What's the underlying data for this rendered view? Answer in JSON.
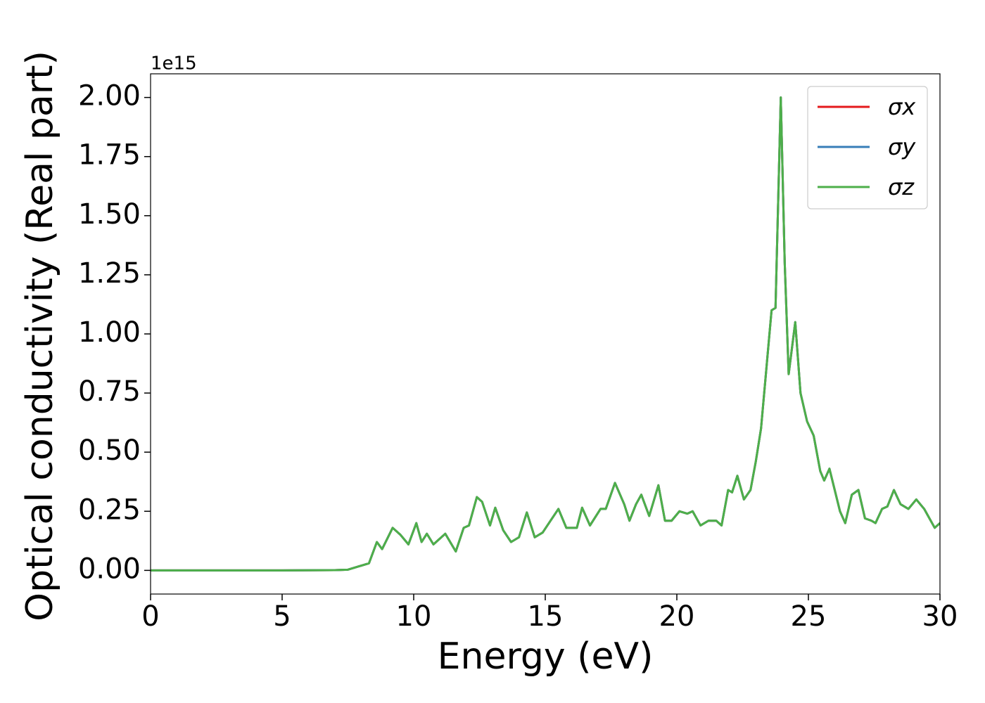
{
  "chart_data": {
    "type": "line",
    "xlabel": "Energy (eV)",
    "ylabel": "Optical conductivity (Real part)",
    "y_offset_label": "1e15",
    "xlim": [
      0,
      30
    ],
    "ylim": [
      -0.1,
      2.1
    ],
    "xticks": [
      0,
      5,
      10,
      15,
      20,
      25,
      30
    ],
    "yticks": [
      {
        "value": 0,
        "label": "0.00"
      },
      {
        "value": 0.25,
        "label": "0.25"
      },
      {
        "value": 0.5,
        "label": "0.50"
      },
      {
        "value": 0.75,
        "label": "0.75"
      },
      {
        "value": 1,
        "label": "1.00"
      },
      {
        "value": 1.25,
        "label": "1.25"
      },
      {
        "value": 1.5,
        "label": "1.50"
      },
      {
        "value": 1.75,
        "label": "1.75"
      },
      {
        "value": 2,
        "label": "2.00"
      }
    ],
    "grid": false,
    "legend": "upper right",
    "x": [
      0,
      5,
      7,
      7.5,
      8,
      8.3,
      8.6,
      8.8,
      9.2,
      9.5,
      9.8,
      10.1,
      10.3,
      10.5,
      10.75,
      11.2,
      11.6,
      11.9,
      12.1,
      12.4,
      12.6,
      12.9,
      13.1,
      13.4,
      13.7,
      14,
      14.3,
      14.6,
      14.9,
      15.2,
      15.5,
      15.8,
      16.2,
      16.4,
      16.7,
      17.1,
      17.3,
      17.65,
      18,
      18.2,
      18.45,
      18.65,
      18.95,
      19.3,
      19.55,
      19.8,
      20.1,
      20.4,
      20.6,
      20.9,
      21.2,
      21.5,
      21.7,
      21.95,
      22.1,
      22.3,
      22.55,
      22.8,
      23,
      23.2,
      23.4,
      23.6,
      23.75,
      23.95,
      24.1,
      24.25,
      24.5,
      24.7,
      24.95,
      25.2,
      25.45,
      25.6,
      25.8,
      26,
      26.2,
      26.4,
      26.65,
      26.9,
      27.15,
      27.4,
      27.55,
      27.8,
      28,
      28.25,
      28.5,
      28.8,
      29.1,
      29.4,
      29.6,
      29.8,
      30
    ],
    "series": [
      {
        "name": "σx",
        "color": "#e41a1c",
        "values": [
          0,
          0,
          0.001,
          0.003,
          0.02,
          0.03,
          0.12,
          0.09,
          0.18,
          0.15,
          0.11,
          0.2,
          0.12,
          0.155,
          0.11,
          0.155,
          0.08,
          0.18,
          0.19,
          0.31,
          0.29,
          0.19,
          0.265,
          0.17,
          0.12,
          0.14,
          0.245,
          0.14,
          0.16,
          0.21,
          0.26,
          0.18,
          0.18,
          0.265,
          0.19,
          0.26,
          0.26,
          0.37,
          0.28,
          0.21,
          0.28,
          0.32,
          0.23,
          0.36,
          0.21,
          0.21,
          0.25,
          0.24,
          0.25,
          0.19,
          0.21,
          0.21,
          0.19,
          0.34,
          0.33,
          0.4,
          0.3,
          0.34,
          0.46,
          0.6,
          0.85,
          1.1,
          1.11,
          2.0,
          1.3,
          0.83,
          1.05,
          0.75,
          0.63,
          0.57,
          0.42,
          0.38,
          0.43,
          0.34,
          0.25,
          0.2,
          0.32,
          0.34,
          0.22,
          0.21,
          0.2,
          0.26,
          0.27,
          0.34,
          0.28,
          0.26,
          0.3,
          0.26,
          0.22,
          0.18,
          0.2
        ]
      },
      {
        "name": "σy",
        "color": "#377eb8",
        "values": [
          0,
          0,
          0.001,
          0.003,
          0.02,
          0.03,
          0.12,
          0.09,
          0.18,
          0.15,
          0.11,
          0.2,
          0.12,
          0.155,
          0.11,
          0.155,
          0.08,
          0.18,
          0.19,
          0.31,
          0.29,
          0.19,
          0.265,
          0.17,
          0.12,
          0.14,
          0.245,
          0.14,
          0.16,
          0.21,
          0.26,
          0.18,
          0.18,
          0.265,
          0.19,
          0.26,
          0.26,
          0.37,
          0.28,
          0.21,
          0.28,
          0.32,
          0.23,
          0.36,
          0.21,
          0.21,
          0.25,
          0.24,
          0.25,
          0.19,
          0.21,
          0.21,
          0.19,
          0.34,
          0.33,
          0.4,
          0.3,
          0.34,
          0.46,
          0.6,
          0.85,
          1.1,
          1.11,
          2.0,
          1.3,
          0.83,
          1.05,
          0.75,
          0.63,
          0.57,
          0.42,
          0.38,
          0.43,
          0.34,
          0.25,
          0.2,
          0.32,
          0.34,
          0.22,
          0.21,
          0.2,
          0.26,
          0.27,
          0.34,
          0.28,
          0.26,
          0.3,
          0.26,
          0.22,
          0.18,
          0.2
        ]
      },
      {
        "name": "σz",
        "color": "#4daf4a",
        "values": [
          0,
          0,
          0.001,
          0.003,
          0.02,
          0.03,
          0.12,
          0.09,
          0.18,
          0.15,
          0.11,
          0.2,
          0.12,
          0.155,
          0.11,
          0.155,
          0.08,
          0.18,
          0.19,
          0.31,
          0.29,
          0.19,
          0.265,
          0.17,
          0.12,
          0.14,
          0.245,
          0.14,
          0.16,
          0.21,
          0.26,
          0.18,
          0.18,
          0.265,
          0.19,
          0.26,
          0.26,
          0.37,
          0.28,
          0.21,
          0.28,
          0.32,
          0.23,
          0.36,
          0.21,
          0.21,
          0.25,
          0.24,
          0.25,
          0.19,
          0.21,
          0.21,
          0.19,
          0.34,
          0.33,
          0.4,
          0.3,
          0.34,
          0.46,
          0.6,
          0.85,
          1.1,
          1.11,
          2.0,
          1.3,
          0.83,
          1.05,
          0.75,
          0.63,
          0.57,
          0.42,
          0.38,
          0.43,
          0.34,
          0.25,
          0.2,
          0.32,
          0.34,
          0.22,
          0.21,
          0.2,
          0.26,
          0.27,
          0.34,
          0.28,
          0.26,
          0.3,
          0.26,
          0.22,
          0.18,
          0.2
        ]
      }
    ]
  }
}
